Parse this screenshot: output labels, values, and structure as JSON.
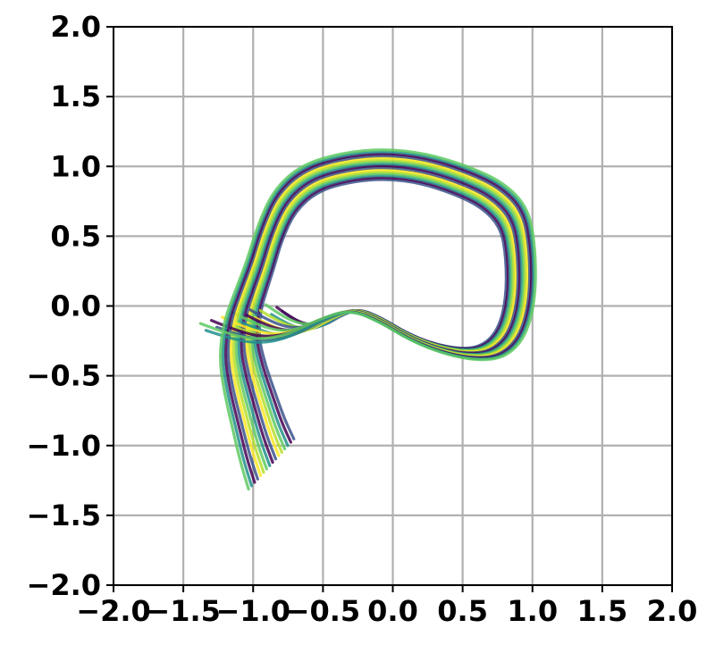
{
  "chart_data": {
    "type": "line",
    "title": "",
    "xlabel": "",
    "ylabel": "",
    "xlim": [
      -2.0,
      2.0
    ],
    "ylim": [
      -2.0,
      2.0
    ],
    "grid": true,
    "x_tick_labels": [
      "−2.0",
      "−1.5",
      "−1.0",
      "−0.5",
      "0.0",
      "0.5",
      "1.0",
      "1.5",
      "2.0"
    ],
    "y_tick_labels": [
      "−2.0",
      "−1.5",
      "−1.0",
      "−0.5",
      "0.0",
      "0.5",
      "1.0",
      "1.5",
      "2.0"
    ],
    "x_ticks": [
      -2.0,
      -1.5,
      -1.0,
      -0.5,
      0.0,
      0.5,
      1.0,
      1.5,
      2.0
    ],
    "y_ticks": [
      -2.0,
      -1.5,
      -1.0,
      -0.5,
      0.0,
      0.5,
      1.0,
      1.5,
      2.0
    ],
    "colors": [
      "#3b528b",
      "#440154",
      "#21918c",
      "#5ec962",
      "#b5de2b",
      "#fde725"
    ],
    "trajectory_base": [
      [
        -0.95,
        -0.06
      ],
      [
        -0.82,
        -0.13
      ],
      [
        -0.68,
        -0.17
      ],
      [
        -0.55,
        -0.15
      ],
      [
        -0.4,
        -0.07
      ],
      [
        -0.25,
        -0.02
      ],
      [
        -0.08,
        -0.09
      ],
      [
        0.1,
        -0.2
      ],
      [
        0.3,
        -0.28
      ],
      [
        0.5,
        -0.32
      ],
      [
        0.66,
        -0.3
      ],
      [
        0.78,
        -0.18
      ],
      [
        0.84,
        0.05
      ],
      [
        0.84,
        0.35
      ],
      [
        0.8,
        0.58
      ],
      [
        0.66,
        0.73
      ],
      [
        0.45,
        0.83
      ],
      [
        0.2,
        0.91
      ],
      [
        -0.05,
        0.94
      ],
      [
        -0.3,
        0.92
      ],
      [
        -0.55,
        0.85
      ],
      [
        -0.72,
        0.7
      ],
      [
        -0.82,
        0.48
      ],
      [
        -0.88,
        0.28
      ],
      [
        -0.94,
        0.12
      ],
      [
        -1.0,
        -0.05
      ],
      [
        -1.02,
        -0.25
      ],
      [
        -0.98,
        -0.45
      ],
      [
        -0.92,
        -0.65
      ],
      [
        -0.86,
        -0.85
      ],
      [
        -0.8,
        -1.0
      ]
    ],
    "trajectory_offsets": [
      {
        "s": -0.04,
        "dx": 0.12,
        "dy": 0.02
      },
      {
        "s": -0.02,
        "dx": 0.1,
        "dy": 0.05
      },
      {
        "s": 0.0,
        "dx": 0.08,
        "dy": 0.0
      },
      {
        "s": 0.02,
        "dx": 0.06,
        "dy": 0.07
      },
      {
        "s": 0.04,
        "dx": 0.04,
        "dy": 0.03
      },
      {
        "s": 0.06,
        "dx": 0.02,
        "dy": -0.02
      },
      {
        "s": 0.08,
        "dx": 0.0,
        "dy": 0.04
      },
      {
        "s": 0.1,
        "dx": -0.02,
        "dy": 0.01
      },
      {
        "s": 0.12,
        "dx": -0.04,
        "dy": -0.04
      },
      {
        "s": 0.14,
        "dx": -0.06,
        "dy": 0.02
      },
      {
        "s": 0.16,
        "dx": -0.08,
        "dy": -0.06
      },
      {
        "s": 0.18,
        "dx": -0.1,
        "dy": -0.01
      },
      {
        "s": 0.2,
        "dx": -0.12,
        "dy": -0.08
      },
      {
        "s": 0.22,
        "dx": -0.14,
        "dy": -0.03
      },
      {
        "s": 0.24,
        "dx": -0.16,
        "dy": -0.1
      },
      {
        "s": 0.26,
        "dx": -0.18,
        "dy": -0.05
      }
    ]
  }
}
